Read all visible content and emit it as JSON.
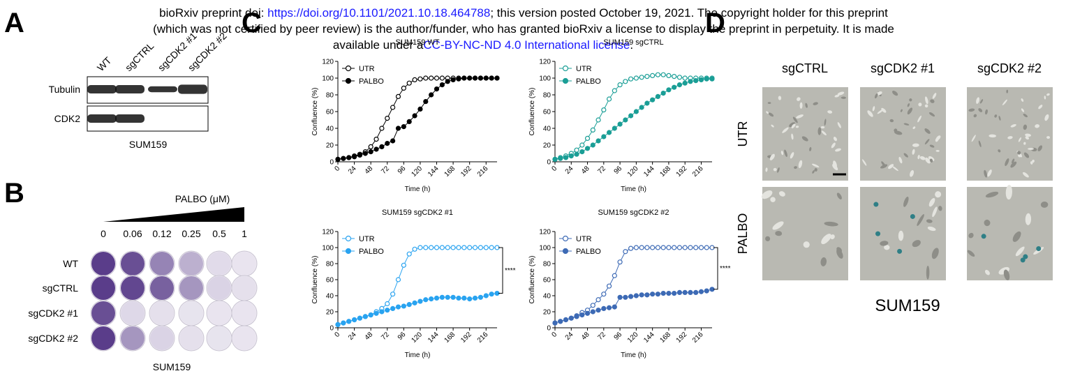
{
  "header": {
    "line1": [
      "bioRxiv preprint doi: ",
      "https://doi.org/10.1101/2021.10.18.464788",
      "; this version posted October 19, 2021. The copyright holder for this preprint"
    ],
    "line2": "(which was not certified by peer review) is the author/funder, who has granted bioRxiv a license to display the preprint in perpetuity. It is made",
    "line3": [
      "available under a",
      "CC-BY-NC-ND 4.0 International license",
      "."
    ]
  },
  "panel_a": {
    "letter": "A",
    "lanes": [
      "WT",
      "sgCTRL",
      "sgCDK2 #1",
      "sgCDK2 #2"
    ],
    "rows": [
      "Tubulin",
      "CDK2"
    ],
    "caption": "SUM159"
  },
  "panel_b": {
    "letter": "B",
    "treatment": "PALBO (μM)",
    "doses": [
      "0",
      "0.06",
      "0.12",
      "0.25",
      "0.5",
      "1"
    ],
    "rows": [
      "WT",
      "sgCTRL",
      "sgCDK2 #1",
      "sgCDK2 #2"
    ],
    "caption": "SUM159"
  },
  "panel_c": {
    "letter": "C"
  },
  "panel_d": {
    "letter": "D",
    "columns": [
      "sgCTRL",
      "sgCDK2 #1",
      "sgCDK2 #2"
    ],
    "rows": [
      "UTR",
      "PALBO"
    ],
    "caption": "SUM159"
  },
  "chart_data": [
    {
      "type": "line",
      "title": "SUM159 WT",
      "xlabel": "Time (h)",
      "ylabel": "Confluence (%)",
      "x": [
        0,
        8,
        16,
        24,
        32,
        40,
        48,
        56,
        64,
        72,
        80,
        88,
        96,
        104,
        112,
        120,
        128,
        136,
        144,
        152,
        160,
        168,
        176,
        184,
        192,
        200,
        208,
        216,
        224,
        232
      ],
      "xlim": [
        0,
        232
      ],
      "xticks": [
        0,
        24,
        48,
        72,
        96,
        120,
        144,
        168,
        192,
        216
      ],
      "ylim": [
        0,
        120
      ],
      "yticks": [
        0,
        20,
        40,
        60,
        80,
        100,
        120
      ],
      "series": [
        {
          "name": "UTR",
          "color": "#000000",
          "marker": "open",
          "values": [
            3,
            4,
            5,
            7,
            9,
            12,
            18,
            27,
            40,
            52,
            65,
            78,
            88,
            94,
            98,
            99,
            100,
            100,
            100,
            100,
            100,
            100,
            100,
            100,
            100,
            100,
            100,
            100,
            100,
            100
          ]
        },
        {
          "name": "PALBO",
          "color": "#000000",
          "marker": "filled",
          "values": [
            3,
            4,
            5,
            6,
            8,
            10,
            12,
            15,
            18,
            22,
            25,
            40,
            42,
            48,
            55,
            63,
            72,
            80,
            87,
            92,
            96,
            98,
            99,
            100,
            100,
            100,
            100,
            100,
            100,
            100
          ]
        }
      ]
    },
    {
      "type": "line",
      "title": "SUM159 sgCTRL",
      "xlabel": "Time (h)",
      "ylabel": "Confluence (%)",
      "x": [
        0,
        8,
        16,
        24,
        32,
        40,
        48,
        56,
        64,
        72,
        80,
        88,
        96,
        104,
        112,
        120,
        128,
        136,
        144,
        152,
        160,
        168,
        176,
        184,
        192,
        200,
        208,
        216,
        224,
        232
      ],
      "xlim": [
        0,
        232
      ],
      "xticks": [
        0,
        24,
        48,
        72,
        96,
        120,
        144,
        168,
        192,
        216
      ],
      "ylim": [
        0,
        120
      ],
      "yticks": [
        0,
        20,
        40,
        60,
        80,
        100,
        120
      ],
      "series": [
        {
          "name": "UTR",
          "color": "#1a9e96",
          "marker": "open",
          "values": [
            3,
            5,
            7,
            10,
            14,
            20,
            28,
            38,
            50,
            62,
            75,
            85,
            92,
            96,
            99,
            100,
            101,
            102,
            103,
            104,
            104,
            103,
            102,
            101,
            100,
            100,
            100,
            100,
            100,
            100
          ]
        },
        {
          "name": "PALBO",
          "color": "#1a9e96",
          "marker": "filled",
          "values": [
            3,
            4,
            5,
            7,
            9,
            12,
            16,
            20,
            25,
            30,
            35,
            40,
            45,
            50,
            55,
            60,
            65,
            70,
            74,
            78,
            82,
            86,
            89,
            92,
            94,
            96,
            97,
            98,
            99,
            99
          ]
        }
      ]
    },
    {
      "type": "line",
      "title": "SUM159 sgCDK2 #1",
      "xlabel": "Time (h)",
      "ylabel": "Confluence (%)",
      "annotation": "****",
      "x": [
        0,
        8,
        16,
        24,
        32,
        40,
        48,
        56,
        64,
        72,
        80,
        88,
        96,
        104,
        112,
        120,
        128,
        136,
        144,
        152,
        160,
        168,
        176,
        184,
        192,
        200,
        208,
        216,
        224,
        232
      ],
      "xlim": [
        0,
        232
      ],
      "xticks": [
        0,
        24,
        48,
        72,
        96,
        120,
        144,
        168,
        192,
        216
      ],
      "ylim": [
        0,
        120
      ],
      "yticks": [
        0,
        20,
        40,
        60,
        80,
        100,
        120
      ],
      "series": [
        {
          "name": "UTR",
          "color": "#29a3f0",
          "marker": "open",
          "values": [
            4,
            6,
            8,
            10,
            12,
            14,
            16,
            20,
            24,
            30,
            42,
            60,
            78,
            92,
            98,
            100,
            100,
            100,
            100,
            100,
            100,
            100,
            100,
            100,
            100,
            100,
            100,
            100,
            100,
            100
          ]
        },
        {
          "name": "PALBO",
          "color": "#29a3f0",
          "marker": "filled",
          "values": [
            4,
            6,
            8,
            10,
            12,
            14,
            16,
            18,
            20,
            22,
            24,
            26,
            27,
            29,
            31,
            33,
            35,
            36,
            37,
            38,
            38,
            38,
            37,
            37,
            36,
            37,
            38,
            40,
            42,
            43
          ]
        }
      ]
    },
    {
      "type": "line",
      "title": "SUM159 sgCDK2 #2",
      "xlabel": "Time (h)",
      "ylabel": "Confluence (%)",
      "annotation": "****",
      "x": [
        0,
        8,
        16,
        24,
        32,
        40,
        48,
        56,
        64,
        72,
        80,
        88,
        96,
        104,
        112,
        120,
        128,
        136,
        144,
        152,
        160,
        168,
        176,
        184,
        192,
        200,
        208,
        216,
        224,
        232
      ],
      "xlim": [
        0,
        232
      ],
      "xticks": [
        0,
        24,
        48,
        72,
        96,
        120,
        144,
        168,
        192,
        216
      ],
      "ylim": [
        0,
        120
      ],
      "yticks": [
        0,
        20,
        40,
        60,
        80,
        100,
        120
      ],
      "series": [
        {
          "name": "UTR",
          "color": "#3d6ab5",
          "marker": "open",
          "values": [
            6,
            8,
            10,
            12,
            15,
            19,
            22,
            28,
            35,
            42,
            52,
            65,
            82,
            95,
            99,
            100,
            100,
            100,
            100,
            100,
            100,
            100,
            100,
            100,
            100,
            100,
            100,
            100,
            100,
            100
          ]
        },
        {
          "name": "PALBO",
          "color": "#3d6ab5",
          "marker": "filled",
          "values": [
            6,
            8,
            10,
            12,
            14,
            16,
            18,
            20,
            22,
            24,
            25,
            26,
            38,
            38,
            39,
            40,
            41,
            41,
            42,
            42,
            43,
            43,
            43,
            44,
            44,
            44,
            44,
            45,
            46,
            48
          ]
        }
      ]
    }
  ]
}
